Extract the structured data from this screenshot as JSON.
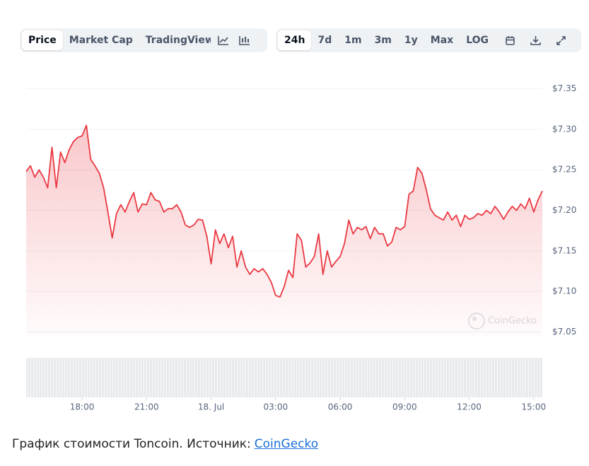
{
  "toolbar": {
    "views": [
      "Price",
      "Market Cap",
      "TradingView"
    ],
    "active_view": 0,
    "ranges": [
      "24h",
      "7d",
      "1m",
      "3m",
      "1y",
      "Max",
      "LOG"
    ],
    "active_range": 0
  },
  "chart_data": {
    "type": "line",
    "watermark": "CoinGecko",
    "color": "#ea3943",
    "grid": true,
    "xlim": [
      15.4,
      39.4
    ],
    "ylim": [
      7.045,
      7.355
    ],
    "xticks": [
      {
        "value": 18,
        "label": "18:00"
      },
      {
        "value": 21,
        "label": "21:00"
      },
      {
        "value": 24,
        "label": "18. Jul"
      },
      {
        "value": 27,
        "label": "03:00"
      },
      {
        "value": 30,
        "label": "06:00"
      },
      {
        "value": 33,
        "label": "09:00"
      },
      {
        "value": 36,
        "label": "12:00"
      },
      {
        "value": 39,
        "label": "15:00"
      }
    ],
    "yticks": [
      {
        "value": 7.05,
        "label": "$7.05"
      },
      {
        "value": 7.1,
        "label": "$7.10"
      },
      {
        "value": 7.15,
        "label": "$7.15"
      },
      {
        "value": 7.2,
        "label": "$7.20"
      },
      {
        "value": 7.25,
        "label": "$7.25"
      },
      {
        "value": 7.3,
        "label": "$7.30"
      },
      {
        "value": 7.35,
        "label": "$7.35"
      }
    ],
    "x": [
      15.4,
      15.6,
      15.8,
      16,
      16.2,
      16.4,
      16.6,
      16.8,
      17,
      17.2,
      17.4,
      17.6,
      17.8,
      18,
      18.2,
      18.4,
      18.6,
      18.8,
      19,
      19.2,
      19.4,
      19.6,
      19.8,
      20,
      20.2,
      20.4,
      20.6,
      20.8,
      21,
      21.2,
      21.4,
      21.6,
      21.8,
      22,
      22.2,
      22.4,
      22.6,
      22.8,
      23,
      23.2,
      23.4,
      23.6,
      23.8,
      24,
      24.2,
      24.4,
      24.6,
      24.8,
      25,
      25.2,
      25.4,
      25.6,
      25.8,
      26,
      26.2,
      26.4,
      26.6,
      26.8,
      27,
      27.2,
      27.4,
      27.6,
      27.8,
      28,
      28.2,
      28.4,
      28.6,
      28.8,
      29,
      29.2,
      29.4,
      29.6,
      29.8,
      30,
      30.2,
      30.4,
      30.6,
      30.8,
      31,
      31.2,
      31.4,
      31.6,
      31.8,
      32,
      32.2,
      32.4,
      32.6,
      32.8,
      33,
      33.2,
      33.4,
      33.6,
      33.8,
      34,
      34.2,
      34.4,
      34.6,
      34.8,
      35,
      35.2,
      35.4,
      35.6,
      35.8,
      36,
      36.2,
      36.4,
      36.6,
      36.8,
      37,
      37.2,
      37.4,
      37.6,
      37.8,
      38,
      38.2,
      38.4,
      38.6,
      38.8,
      39,
      39.2,
      39.4
    ],
    "values": [
      7.248,
      7.255,
      7.241,
      7.25,
      7.241,
      7.228,
      7.278,
      7.228,
      7.272,
      7.259,
      7.275,
      7.285,
      7.29,
      7.292,
      7.305,
      7.263,
      7.255,
      7.246,
      7.228,
      7.198,
      7.166,
      7.196,
      7.207,
      7.198,
      7.211,
      7.222,
      7.198,
      7.208,
      7.207,
      7.222,
      7.213,
      7.211,
      7.198,
      7.202,
      7.202,
      7.207,
      7.198,
      7.182,
      7.179,
      7.182,
      7.189,
      7.188,
      7.168,
      7.134,
      7.176,
      7.159,
      7.171,
      7.154,
      7.168,
      7.13,
      7.15,
      7.13,
      7.121,
      7.128,
      7.124,
      7.128,
      7.121,
      7.111,
      7.095,
      7.093,
      7.106,
      7.126,
      7.117,
      7.171,
      7.163,
      7.13,
      7.135,
      7.143,
      7.171,
      7.121,
      7.15,
      7.13,
      7.137,
      7.143,
      7.159,
      7.188,
      7.171,
      7.179,
      7.176,
      7.18,
      7.165,
      7.179,
      7.171,
      7.171,
      7.156,
      7.161,
      7.179,
      7.176,
      7.18,
      7.22,
      7.224,
      7.253,
      7.246,
      7.226,
      7.202,
      7.194,
      7.191,
      7.188,
      7.198,
      7.188,
      7.194,
      7.18,
      7.194,
      7.189,
      7.191,
      7.196,
      7.194,
      7.2,
      7.196,
      7.205,
      7.198,
      7.189,
      7.198,
      7.205,
      7.2,
      7.208,
      7.202,
      7.215,
      7.198,
      7.213,
      7.224
    ]
  },
  "caption": {
    "text": "График стоимости Toncoin. Источник:",
    "link": "CoinGecko"
  }
}
